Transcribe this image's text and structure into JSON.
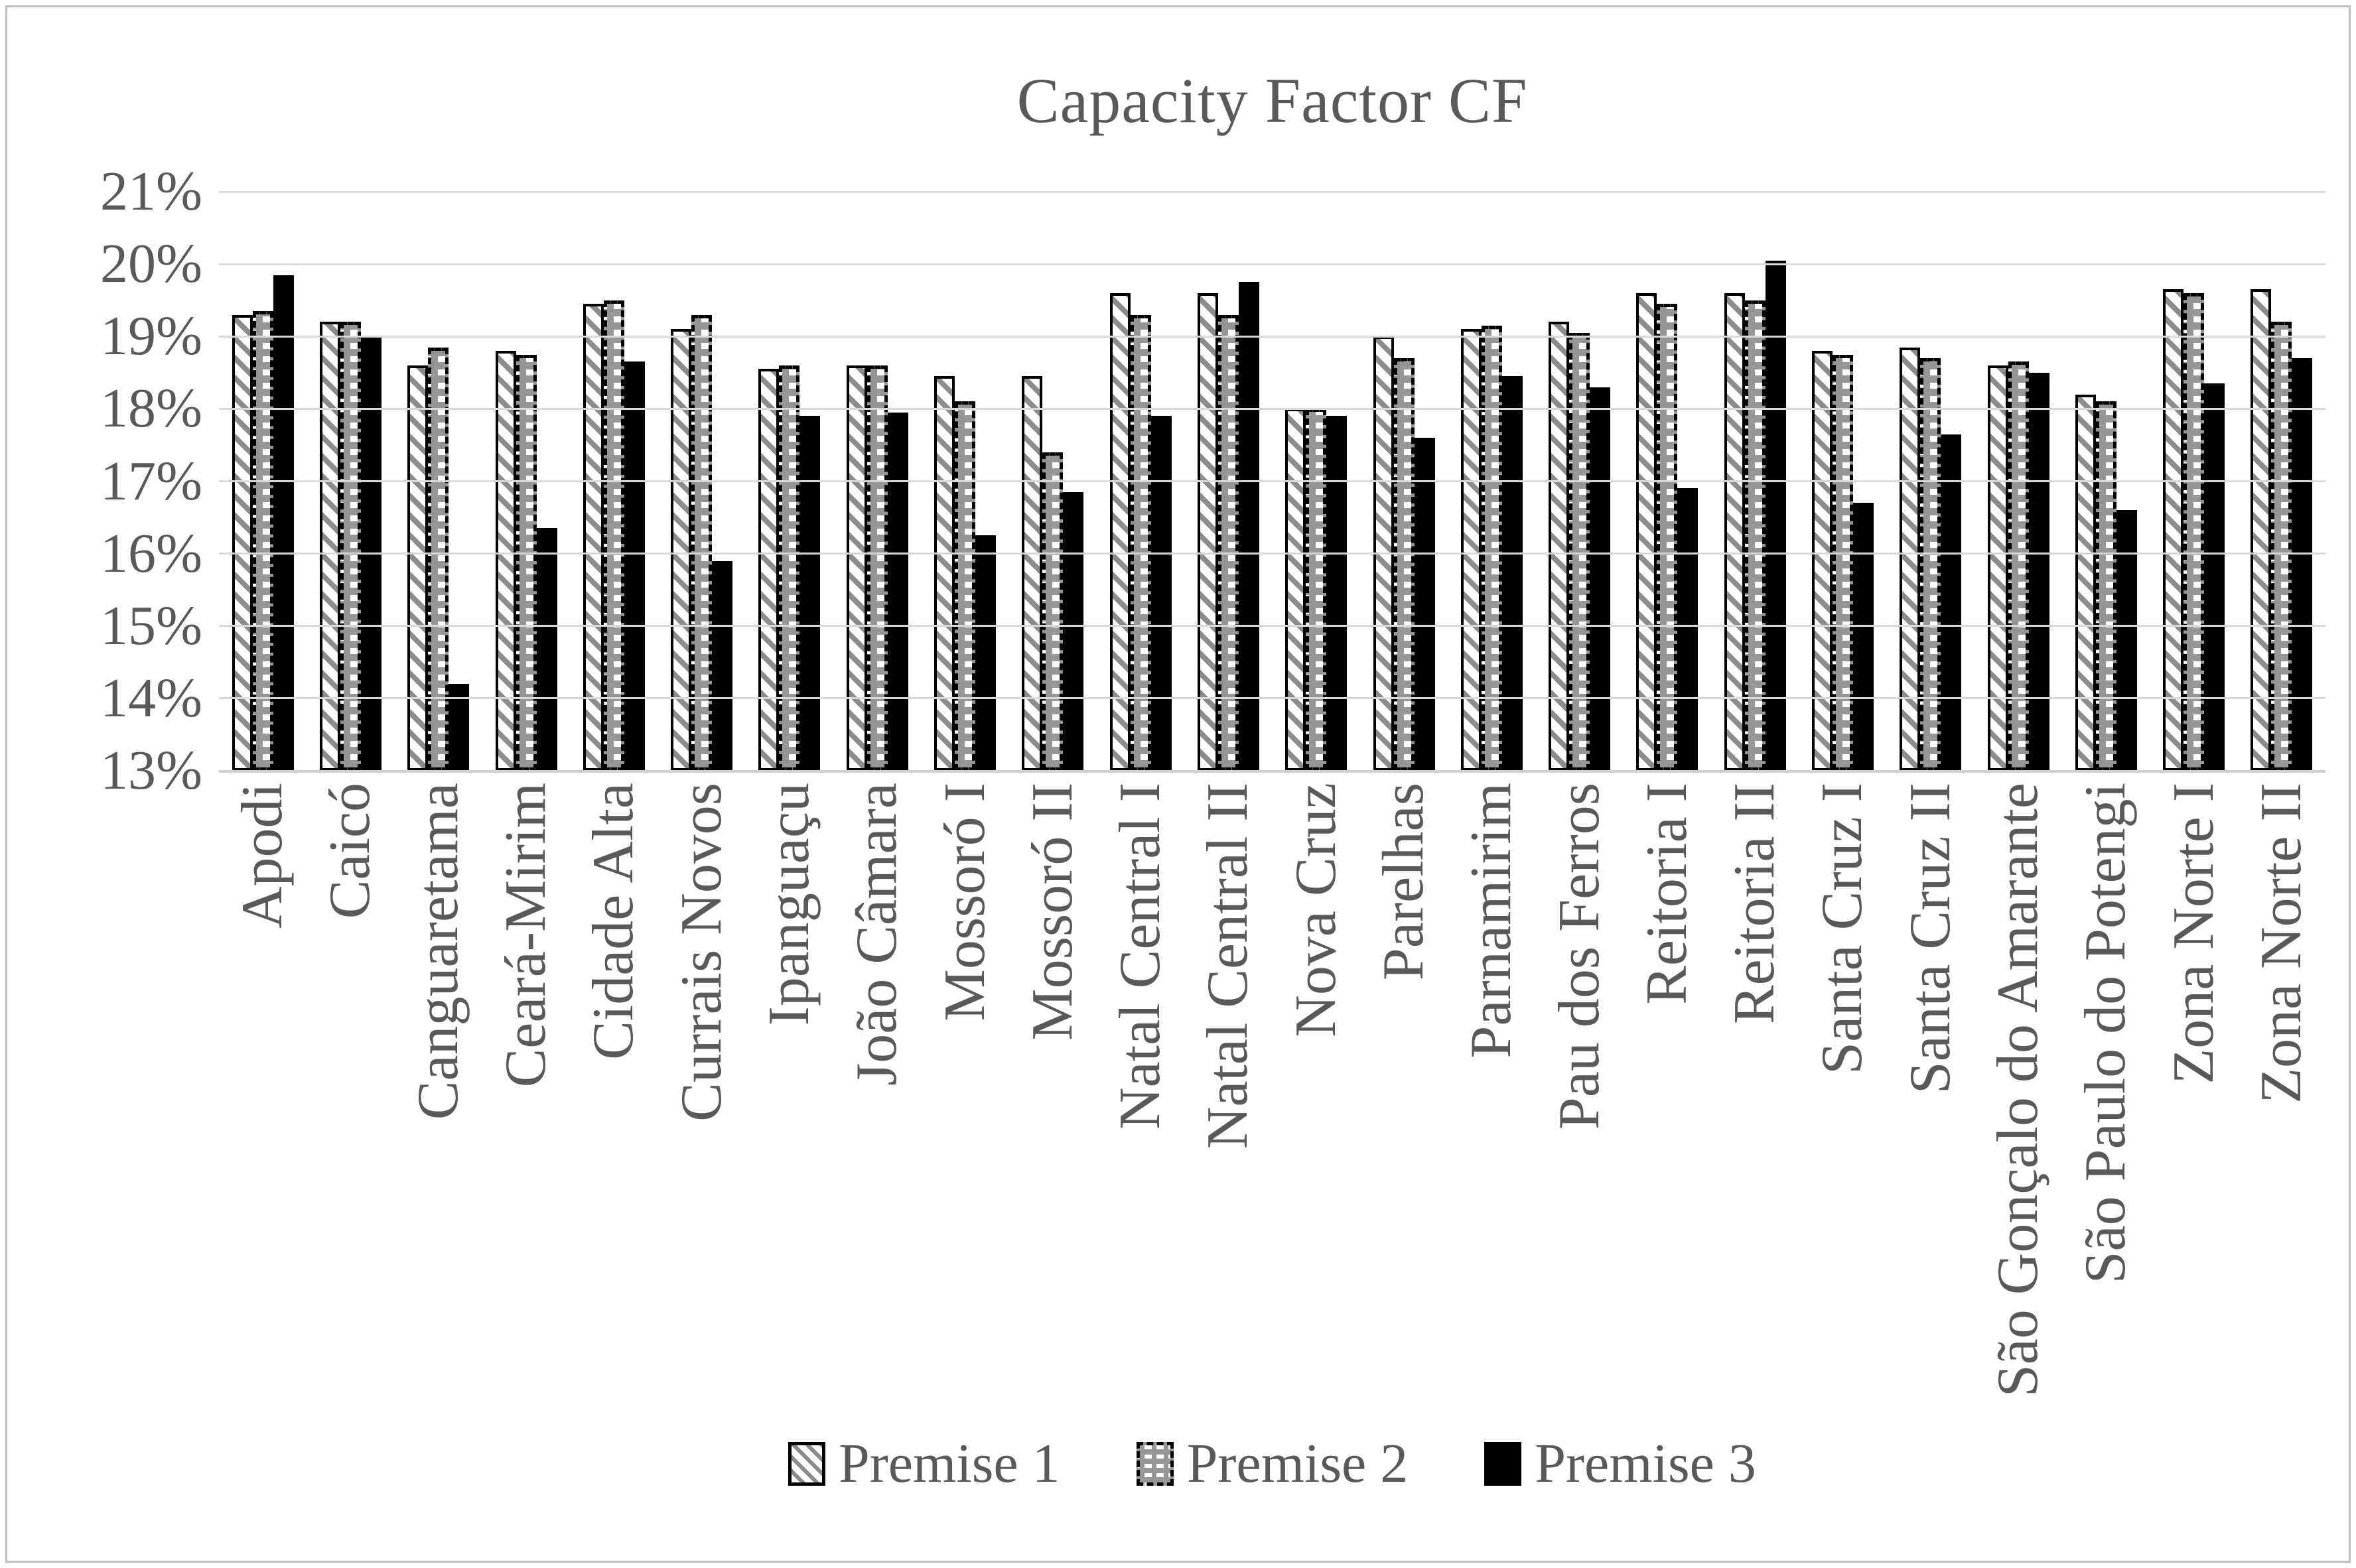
{
  "title": "Capacity Factor CF",
  "chart_data": {
    "type": "bar",
    "title": "Capacity Factor CF",
    "categories": [
      "Apodi",
      "Caicó",
      "Canguaretama",
      "Ceará-Mirim",
      "Cidade Alta",
      "Currais Novos",
      "Ipanguaçu",
      "João Câmara",
      "Mossoró I",
      "Mossoró II",
      "Natal Central I",
      "Natal Central II",
      "Nova Cruz",
      "Parelhas",
      "Parnamirim",
      "Pau dos Ferros",
      "Reitoria I",
      "Reitoria II",
      "Santa Cruz I",
      "Santa Cruz II",
      "São Gonçalo do Amarante",
      "São Paulo do Potengi",
      "Zona Norte I",
      "Zona Norte II"
    ],
    "series": [
      {
        "name": "Premise 1",
        "pattern": "diagonal-hatch",
        "values": [
          19.3,
          19.2,
          18.6,
          18.8,
          19.45,
          19.1,
          18.55,
          18.6,
          18.45,
          18.45,
          19.6,
          19.6,
          18.0,
          19.0,
          19.1,
          19.2,
          19.6,
          19.6,
          18.8,
          18.85,
          18.6,
          18.2,
          19.65,
          19.65
        ]
      },
      {
        "name": "Premise 2",
        "pattern": "gray-dash",
        "values": [
          19.35,
          19.2,
          18.85,
          18.75,
          19.5,
          19.3,
          18.6,
          18.6,
          18.1,
          17.4,
          19.3,
          19.3,
          18.0,
          18.7,
          19.15,
          19.05,
          19.45,
          19.5,
          18.75,
          18.7,
          18.65,
          18.1,
          19.6,
          19.2
        ]
      },
      {
        "name": "Premise 3",
        "pattern": "solid-black",
        "values": [
          19.85,
          19.0,
          14.2,
          16.35,
          18.65,
          15.9,
          17.9,
          17.95,
          16.25,
          16.85,
          17.9,
          19.75,
          17.9,
          17.6,
          18.45,
          18.3,
          16.9,
          20.05,
          16.7,
          17.65,
          18.5,
          16.6,
          18.35,
          18.7
        ]
      }
    ],
    "xlabel": "",
    "ylabel": "",
    "ylim": [
      13,
      21
    ],
    "ytick_step": 1,
    "ytick_labels": [
      "13%",
      "14%",
      "15%",
      "16%",
      "17%",
      "18%",
      "19%",
      "20%",
      "21%"
    ],
    "grid": true,
    "legend_position": "bottom",
    "colors": {
      "text": "#595959",
      "gridline": "#d9d9d9",
      "bar_black": "#000000",
      "pattern_gray": "#8c8c8c",
      "frame_border": "#bfbfbf"
    }
  }
}
